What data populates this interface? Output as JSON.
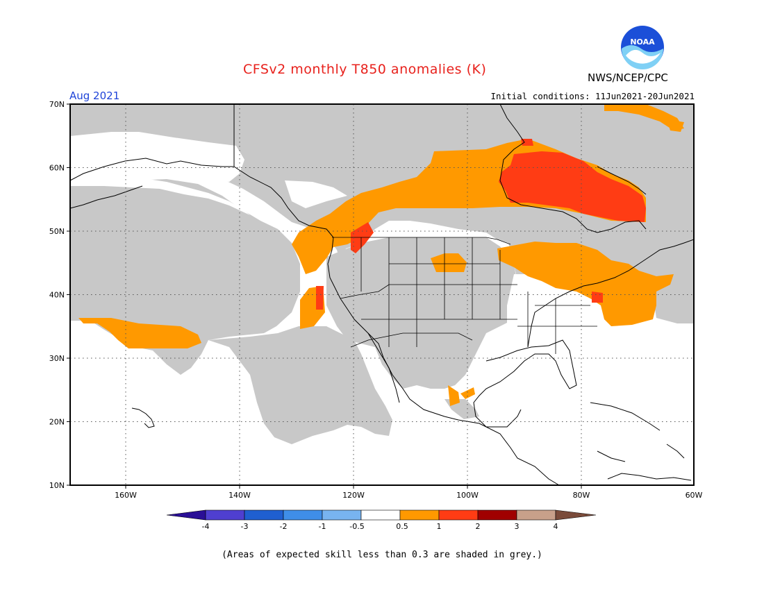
{
  "header": {
    "title": "CFSv2 monthly T850 anomalies (K)",
    "org": "NWS/NCEP/CPC",
    "month": "Aug 2021",
    "initial_conditions": "Initial conditions: 11Jun2021-20Jun2021",
    "logo_text": "NOAA"
  },
  "map": {
    "lat_labels": [
      "70N",
      "60N",
      "50N",
      "40N",
      "30N",
      "20N",
      "10N"
    ],
    "lon_labels": [
      "160W",
      "140W",
      "120W",
      "100W",
      "80W",
      "60W"
    ],
    "background_color": "#ffffff",
    "grey_color": "#c8c8c8"
  },
  "colorbar": {
    "tick_labels": [
      "-4",
      "-3",
      "-2",
      "-1",
      "-0.5",
      "0.5",
      "1",
      "2",
      "3",
      "4"
    ],
    "colors": [
      "#2a0f96",
      "#4f3fd0",
      "#1f5fd0",
      "#3f8ee8",
      "#78b4f0",
      "#ffffff",
      "#ff9900",
      "#ff3c14",
      "#a00000",
      "#c8a08a",
      "#7a4b3a"
    ]
  },
  "legend_anomaly_colors": {
    "pos_0_5_to_1": "#ff9900",
    "pos_1_to_2": "#ff3c14",
    "pos_2_to_3": "#a00000"
  },
  "footnote": "(Areas of expected skill less than 0.3 are shaded in grey.)"
}
